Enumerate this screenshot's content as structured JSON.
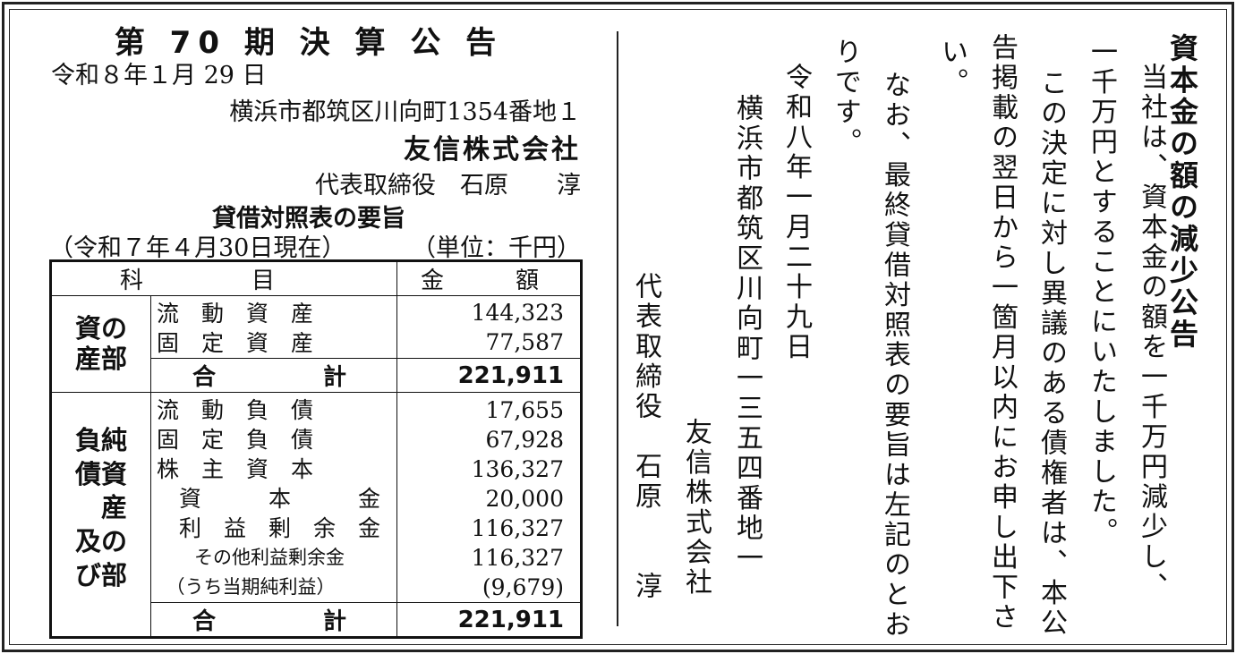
{
  "left": {
    "title": "第 70 期 決 算 公 告",
    "date": "令和８年１月 29 日",
    "address": "横浜市都筑区川向町1354番地１",
    "company": "友信株式会社",
    "representative": "代表取締役　石原　　淳",
    "bs_title": "貸借対照表の要旨",
    "as_of": "（令和７年４月30日現在）",
    "unit": "（単位：千円）",
    "table": {
      "header": {
        "item_a": "科",
        "item_b": "目",
        "amount_a": "金",
        "amount_b": "額"
      },
      "assets": {
        "section": "資の\n産部",
        "rows": [
          {
            "label": "流　動　資　産",
            "value": "144,323"
          },
          {
            "label": "固　定　資　産",
            "value": "77,587"
          }
        ],
        "total_a": "合",
        "total_b": "計",
        "total_value": "221,911"
      },
      "liabilities": {
        "section": "負純\n債資\n　産\n及の\nび部",
        "rows": [
          {
            "label": "流　動　負　債",
            "value": "17,655"
          },
          {
            "label": "固　定　負　債",
            "value": "67,928"
          },
          {
            "label": "株　主　資　本",
            "value": "136,327"
          },
          {
            "label": "　資　　　本　　　金",
            "value": "20,000"
          },
          {
            "label": "　利　益　剰　余　金",
            "value": "116,327"
          },
          {
            "label": "　　その他利益剰余金",
            "value": "116,327"
          },
          {
            "label": "　（うち当期純利益）",
            "value": "(9,679)"
          }
        ],
        "total_a": "合",
        "total_b": "計",
        "total_value": "221,911"
      }
    }
  },
  "right": {
    "columns": [
      "資本金の額の減少公告",
      "当社は、資本金の額を一千万円減少し、",
      "一千万円とすることにいたしました。",
      "この決定に対し異議のある債権者は、本公",
      "告掲載の翌日から一箇月以内にお申し出下さ",
      "い。",
      "なお、最終貸借対照表の要旨は左記のとお",
      "りです。",
      "令和八年一月二十九日",
      "横浜市都筑区川向町一三五四番地一",
      "友信株式会社",
      "代表取締役　石原　　淳"
    ]
  }
}
